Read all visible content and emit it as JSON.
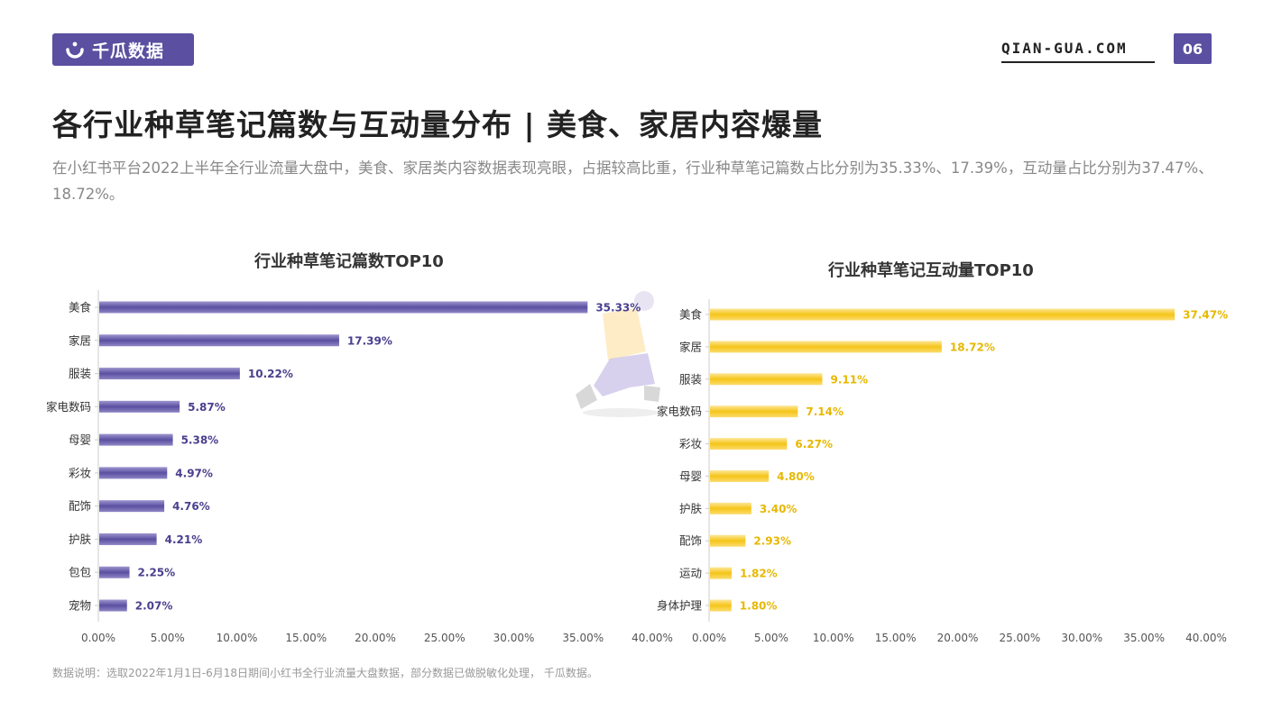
{
  "header": {
    "logo_text": "千瓜数据",
    "site": "QIAN-GUA.COM",
    "page_number": "06"
  },
  "title": "各行业种草笔记篇数与互动量分布 | 美食、家居内容爆量",
  "subtitle": "在小红书平台2022上半年全行业流量大盘中，美食、家居类内容数据表现亮眼，占据较高比重，行业种草笔记篇数占比分别为35.33%、17.39%，互动量占比分别为37.47%、18.72%。",
  "footnote": "数据说明：选取2022年1月1日-6月18日期间小红书全行业流量大盘数据，部分数据已做脱敏化处理， 千瓜数据。",
  "chart_data": [
    {
      "type": "bar",
      "orientation": "horizontal",
      "title": "行业种草笔记篇数TOP10",
      "categories": [
        "美食",
        "家居",
        "服装",
        "家电数码",
        "母婴",
        "彩妆",
        "配饰",
        "护肤",
        "包包",
        "宠物"
      ],
      "values": [
        35.33,
        17.39,
        10.22,
        5.87,
        5.38,
        4.97,
        4.76,
        4.21,
        2.25,
        2.07
      ],
      "value_labels": [
        "35.33%",
        "17.39%",
        "10.22%",
        "5.87%",
        "5.38%",
        "4.97%",
        "4.76%",
        "4.21%",
        "2.25%",
        "2.07%"
      ],
      "xlim": [
        0,
        40
      ],
      "x_ticks": [
        "0.00%",
        "5.00%",
        "10.00%",
        "15.00%",
        "20.00%",
        "25.00%",
        "30.00%",
        "35.00%",
        "40.00%"
      ],
      "color": "#5a4fa0",
      "grid": false,
      "legend": "none"
    },
    {
      "type": "bar",
      "orientation": "horizontal",
      "title": "行业种草笔记互动量TOP10",
      "categories": [
        "美食",
        "家居",
        "服装",
        "家电数码",
        "彩妆",
        "母婴",
        "护肤",
        "配饰",
        "运动",
        "身体护理"
      ],
      "values": [
        37.47,
        18.72,
        9.11,
        7.14,
        6.27,
        4.8,
        3.4,
        2.93,
        1.82,
        1.8
      ],
      "value_labels": [
        "37.47%",
        "18.72%",
        "9.11%",
        "7.14%",
        "6.27%",
        "4.80%",
        "3.40%",
        "2.93%",
        "1.82%",
        "1.80%"
      ],
      "xlim": [
        0,
        40
      ],
      "x_ticks": [
        "0.00%",
        "5.00%",
        "10.00%",
        "15.00%",
        "20.00%",
        "25.00%",
        "30.00%",
        "35.00%",
        "40.00%"
      ],
      "color": "#f5c518",
      "grid": false,
      "legend": "none"
    }
  ]
}
